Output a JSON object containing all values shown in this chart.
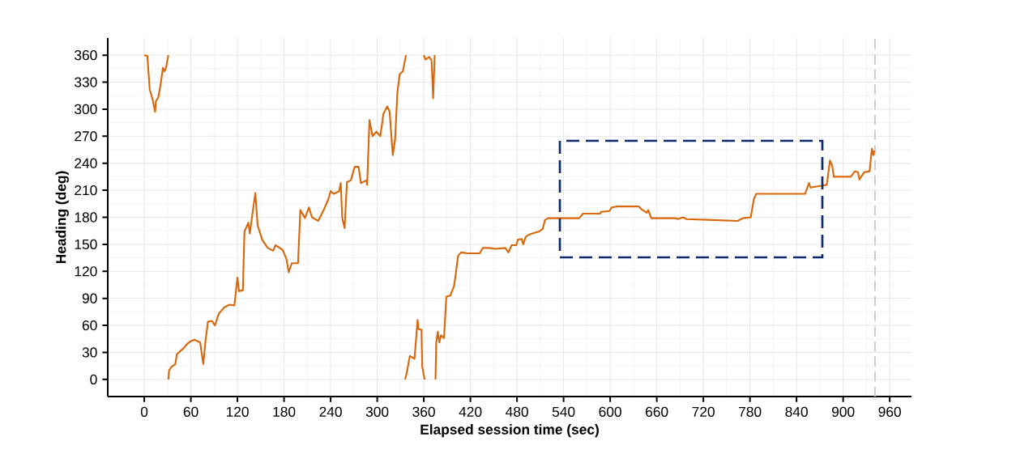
{
  "chart_data": {
    "type": "line",
    "xlabel": "Elapsed session time (sec)",
    "ylabel": "Heading (deg)",
    "xlim": [
      -47,
      988
    ],
    "ylim": [
      -19,
      379
    ],
    "xticks": [
      0,
      60,
      120,
      180,
      240,
      300,
      360,
      420,
      480,
      540,
      600,
      660,
      720,
      780,
      840,
      900,
      960
    ],
    "yticks": [
      0,
      30,
      60,
      90,
      120,
      150,
      180,
      210,
      240,
      270,
      300,
      330,
      360
    ],
    "grid": true,
    "marker": "none",
    "line_style": "solid",
    "series": [
      {
        "color": "#d9670b",
        "x": [
          0,
          4,
          7,
          11,
          14,
          15,
          18,
          21,
          24,
          26,
          28,
          31
        ],
        "values": [
          360,
          359,
          322,
          310,
          297,
          309,
          313,
          327,
          346,
          342,
          346,
          360
        ]
      },
      {
        "color": "#d9670b",
        "x": [
          31,
          32,
          35,
          40,
          42,
          51,
          56,
          61,
          65,
          72,
          76,
          79,
          82,
          87,
          91,
          96,
          103,
          110,
          116,
          120,
          122,
          127,
          129,
          134,
          136,
          139,
          143,
          146,
          152,
          159,
          166,
          169,
          178,
          183,
          186,
          190,
          198,
          201,
          207,
          212,
          216,
          224,
          231,
          237,
          240,
          244,
          251,
          253,
          255,
          258,
          261,
          266,
          271,
          276,
          279,
          286,
          287,
          290,
          294,
          299,
          304,
          308,
          313,
          316,
          320,
          323,
          326,
          329,
          333,
          337
        ],
        "values": [
          0,
          10,
          14,
          17,
          28,
          35,
          40,
          43,
          44,
          41,
          17,
          44,
          64,
          65,
          60,
          73,
          80,
          83,
          82,
          113,
          98,
          99,
          164,
          174,
          162,
          182,
          207,
          171,
          155,
          146,
          143,
          149,
          144,
          134,
          119,
          129,
          129,
          188,
          179,
          191,
          180,
          176,
          188,
          200,
          209,
          206,
          209,
          218,
          179,
          168,
          219,
          221,
          236,
          236,
          218,
          221,
          216,
          288,
          270,
          275,
          270,
          295,
          303,
          297,
          249,
          266,
          319,
          339,
          342,
          360
        ]
      },
      {
        "color": "#d9670b",
        "x": [
          336,
          338,
          342,
          348,
          352,
          353,
          357,
          358,
          361
        ],
        "values": [
          0,
          7,
          26,
          23,
          66,
          56,
          55,
          14,
          0
        ]
      },
      {
        "color": "#d9670b",
        "x": [
          360,
          362,
          367,
          370,
          372,
          374
        ],
        "values": [
          360,
          355,
          358,
          354,
          312,
          360
        ]
      },
      {
        "color": "#d9670b",
        "x": [
          375,
          376,
          378,
          380,
          382,
          386,
          389,
          394,
          399,
          401,
          404,
          408,
          416,
          427,
          432,
          436,
          444,
          453,
          465,
          469,
          473,
          479,
          481,
          486,
          488,
          491,
          496,
          503,
          508,
          513,
          516,
          520,
          538,
          560,
          565,
          587,
          588,
          599,
          602,
          609,
          637,
          640,
          647,
          649,
          653,
          684,
          687,
          694,
          698,
          733,
          764,
          771,
          781,
          785,
          788,
          802,
          851,
          856,
          858,
          872,
          879,
          883,
          886,
          888,
          910,
          915,
          919,
          921,
          927,
          934,
          937,
          939,
          940
        ],
        "values": [
          0,
          41,
          53,
          41,
          49,
          46,
          92,
          93,
          104,
          116,
          137,
          141,
          140,
          140,
          140,
          146,
          146,
          145,
          146,
          141,
          149,
          149,
          155,
          156,
          150,
          158,
          161,
          163,
          164,
          167,
          177,
          179,
          179,
          179,
          184,
          184,
          186,
          187,
          191,
          192,
          192,
          189,
          185,
          188,
          179,
          179,
          178,
          180,
          178,
          177,
          176,
          179,
          180,
          200,
          206,
          206,
          206,
          218,
          213,
          215,
          216,
          243,
          237,
          225,
          225,
          231,
          230,
          222,
          230,
          231,
          256,
          249,
          254
        ]
      }
    ],
    "ref_lines": [
      {
        "axis": "x",
        "value": 941,
        "color": "#cccccc",
        "line_style": "dashed"
      }
    ]
  }
}
